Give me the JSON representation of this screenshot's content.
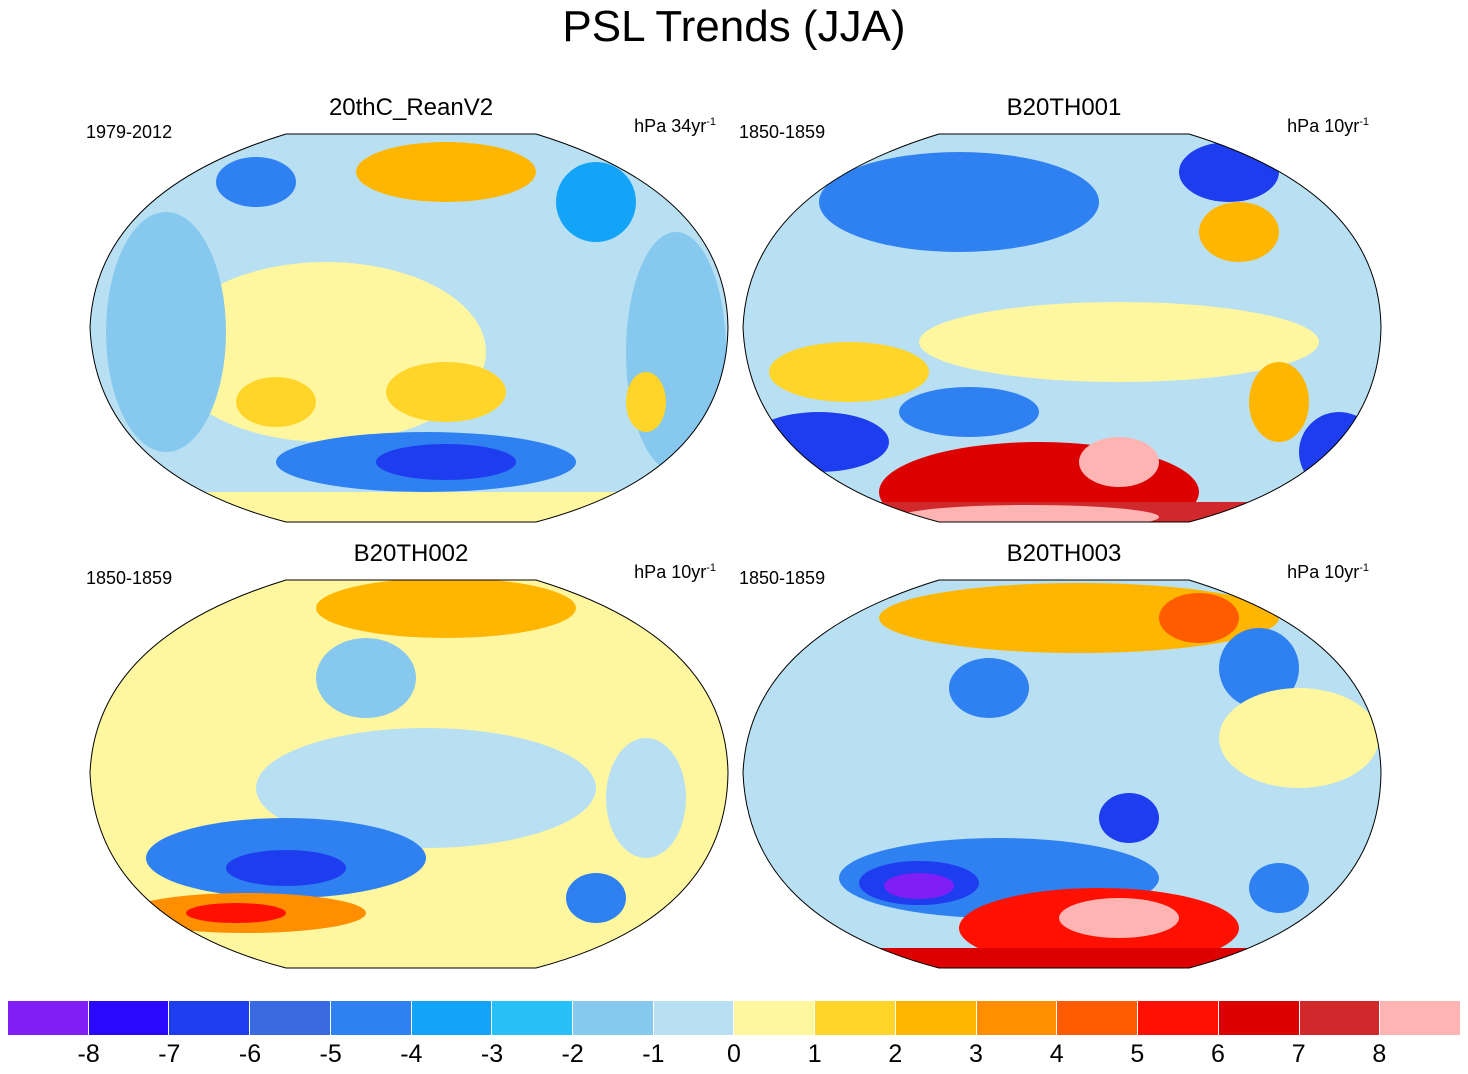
{
  "title": "PSL Trends (JJA)",
  "panels": [
    {
      "name": "20thC_ReanV2",
      "period": "1979-2012",
      "unit_base": "hPa 34yr",
      "unit_exp": "-1"
    },
    {
      "name": "B20TH001",
      "period": "1850-1859",
      "unit_base": "hPa 10yr",
      "unit_exp": "-1"
    },
    {
      "name": "B20TH002",
      "period": "1850-1859",
      "unit_base": "hPa 10yr",
      "unit_exp": "-1"
    },
    {
      "name": "B20TH003",
      "period": "1850-1859",
      "unit_base": "hPa 10yr",
      "unit_exp": "-1"
    }
  ],
  "colorbar": {
    "labels": [
      "-8",
      "-7",
      "-6",
      "-5",
      "-4",
      "-3",
      "-2",
      "-1",
      "0",
      "1",
      "2",
      "3",
      "4",
      "5",
      "6",
      "7",
      "8"
    ],
    "colors": [
      "#7f1ff5",
      "#2a0aff",
      "#1d3dee",
      "#3a6ae0",
      "#2f80f0",
      "#13a3f7",
      "#27c0f7",
      "#86c8ee",
      "#b8e0f2",
      "#fff6a0",
      "#ffd52a",
      "#ffb600",
      "#ff8e00",
      "#ff5c00",
      "#ff1000",
      "#dc0000",
      "#d1292b",
      "#ffb4b4"
    ]
  },
  "palette": {
    "coast": "#6e6e6e",
    "border": "#000000"
  }
}
